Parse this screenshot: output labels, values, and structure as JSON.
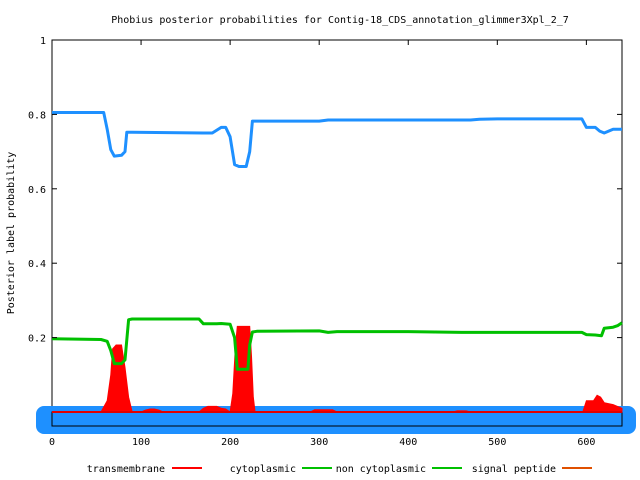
{
  "chart_data": {
    "type": "line",
    "title": "Phobius posterior probabilities for Contig-18_CDS_annotation_glimmer3Xpl_2_7",
    "xlabel": "",
    "ylabel": "Posterior label probability",
    "xlim": [
      0,
      640
    ],
    "ylim": [
      0,
      1
    ],
    "x_ticks": [
      0,
      100,
      200,
      300,
      400,
      500,
      600
    ],
    "y_ticks": [
      0.2,
      0.4,
      0.6,
      0.8,
      1
    ],
    "y_tick_labels": [
      "0.2",
      "0.4",
      "0.6",
      "0.8",
      "1"
    ],
    "grid": false,
    "legend_position": "bottom",
    "series": [
      {
        "name": "transmembrane",
        "color": "#ff0000",
        "style": "filled",
        "points": [
          [
            0,
            0.0
          ],
          [
            55,
            0.0
          ],
          [
            62,
            0.03
          ],
          [
            66,
            0.1
          ],
          [
            68,
            0.17
          ],
          [
            72,
            0.18
          ],
          [
            78,
            0.18
          ],
          [
            82,
            0.12
          ],
          [
            86,
            0.04
          ],
          [
            90,
            0.0
          ],
          [
            100,
            0.0
          ],
          [
            105,
            0.005
          ],
          [
            110,
            0.008
          ],
          [
            115,
            0.008
          ],
          [
            120,
            0.005
          ],
          [
            125,
            0.0
          ],
          [
            165,
            0.0
          ],
          [
            170,
            0.01
          ],
          [
            175,
            0.015
          ],
          [
            185,
            0.015
          ],
          [
            190,
            0.01
          ],
          [
            195,
            0.008
          ],
          [
            200,
            0.0
          ],
          [
            203,
            0.05
          ],
          [
            206,
            0.18
          ],
          [
            208,
            0.23
          ],
          [
            222,
            0.23
          ],
          [
            224,
            0.15
          ],
          [
            226,
            0.04
          ],
          [
            228,
            0.0
          ],
          [
            290,
            0.0
          ],
          [
            295,
            0.006
          ],
          [
            305,
            0.006
          ],
          [
            315,
            0.006
          ],
          [
            320,
            0.0
          ],
          [
            450,
            0.0
          ],
          [
            455,
            0.003
          ],
          [
            465,
            0.003
          ],
          [
            470,
            0.0
          ],
          [
            596,
            0.0
          ],
          [
            600,
            0.03
          ],
          [
            608,
            0.03
          ],
          [
            612,
            0.045
          ],
          [
            616,
            0.04
          ],
          [
            620,
            0.025
          ],
          [
            630,
            0.02
          ],
          [
            640,
            0.01
          ]
        ]
      },
      {
        "name": "cytoplasmic",
        "color": "#00c000",
        "style": "filled",
        "points": [
          [
            0,
            0.0
          ],
          [
            640,
            0.0
          ]
        ]
      },
      {
        "name": "non cytoplasmic",
        "color": "#00c000",
        "style": "line",
        "points": [
          [
            0,
            0.197
          ],
          [
            55,
            0.195
          ],
          [
            62,
            0.19
          ],
          [
            66,
            0.165
          ],
          [
            70,
            0.13
          ],
          [
            78,
            0.13
          ],
          [
            82,
            0.14
          ],
          [
            86,
            0.248
          ],
          [
            90,
            0.25
          ],
          [
            165,
            0.25
          ],
          [
            170,
            0.237
          ],
          [
            185,
            0.237
          ],
          [
            190,
            0.238
          ],
          [
            200,
            0.236
          ],
          [
            205,
            0.2
          ],
          [
            208,
            0.115
          ],
          [
            220,
            0.115
          ],
          [
            222,
            0.18
          ],
          [
            225,
            0.215
          ],
          [
            230,
            0.217
          ],
          [
            300,
            0.218
          ],
          [
            310,
            0.214
          ],
          [
            320,
            0.216
          ],
          [
            400,
            0.216
          ],
          [
            460,
            0.214
          ],
          [
            500,
            0.214
          ],
          [
            595,
            0.214
          ],
          [
            600,
            0.208
          ],
          [
            610,
            0.207
          ],
          [
            617,
            0.205
          ],
          [
            620,
            0.225
          ],
          [
            630,
            0.228
          ],
          [
            635,
            0.232
          ],
          [
            640,
            0.24
          ]
        ]
      },
      {
        "name": "signal peptide",
        "color": "#1e90ff",
        "style": "line",
        "points": [
          [
            0,
            0.805
          ],
          [
            58,
            0.805
          ],
          [
            62,
            0.76
          ],
          [
            66,
            0.705
          ],
          [
            70,
            0.688
          ],
          [
            78,
            0.69
          ],
          [
            82,
            0.7
          ],
          [
            84,
            0.752
          ],
          [
            90,
            0.752
          ],
          [
            170,
            0.75
          ],
          [
            180,
            0.75
          ],
          [
            190,
            0.765
          ],
          [
            195,
            0.765
          ],
          [
            200,
            0.74
          ],
          [
            205,
            0.665
          ],
          [
            210,
            0.66
          ],
          [
            218,
            0.66
          ],
          [
            222,
            0.7
          ],
          [
            225,
            0.782
          ],
          [
            240,
            0.782
          ],
          [
            300,
            0.782
          ],
          [
            310,
            0.785
          ],
          [
            400,
            0.785
          ],
          [
            470,
            0.785
          ],
          [
            480,
            0.787
          ],
          [
            500,
            0.788
          ],
          [
            595,
            0.788
          ],
          [
            600,
            0.765
          ],
          [
            610,
            0.765
          ],
          [
            615,
            0.755
          ],
          [
            620,
            0.75
          ],
          [
            630,
            0.76
          ],
          [
            640,
            0.76
          ]
        ]
      }
    ],
    "signal_peptide_legend": {
      "label": "signal peptide",
      "color": "#e05000"
    },
    "legend": [
      "transmembrane",
      "cytoplasmic",
      "non cytoplasmic",
      "signal peptide"
    ]
  }
}
